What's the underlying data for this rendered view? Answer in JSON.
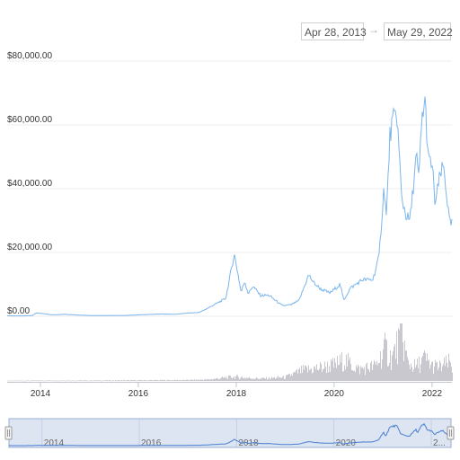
{
  "date_range": {
    "from": "Apr 28, 2013",
    "arrow": "→",
    "to": "May 29, 2022"
  },
  "colors": {
    "price_line": "#7cb5ec",
    "volume_bar": "#c8c8ce",
    "navigator_fill": "#dde5f3",
    "navigator_border": "#9aaed4",
    "grid": "#ececec",
    "axis_text": "#333333"
  },
  "chart_data": {
    "type": "line",
    "title": "",
    "xlabel": "",
    "ylabel": "",
    "ylim": [
      0,
      80000
    ],
    "yticks": [
      "$0.00",
      "$20,000.00",
      "$40,000.00",
      "$60,000.00",
      "$80,000.00"
    ],
    "xticks": [
      "2014",
      "2016",
      "2018",
      "2020",
      "2022"
    ],
    "navigator_xticks": [
      "2014",
      "2016",
      "2018",
      "2020",
      "2..."
    ],
    "grid": true,
    "legend": "none",
    "series": [
      {
        "values_kind": "price",
        "x": [
          "2013-04-28",
          "2013-08-01",
          "2013-11-01",
          "2013-12-04",
          "2014-01-15",
          "2014-04-01",
          "2014-07-01",
          "2014-10-01",
          "2015-01-15",
          "2015-06-01",
          "2015-10-01",
          "2016-01-01",
          "2016-06-15",
          "2016-10-01",
          "2017-01-01",
          "2017-04-01",
          "2017-06-01",
          "2017-08-15",
          "2017-10-15",
          "2017-12-17",
          "2018-01-15",
          "2018-02-06",
          "2018-03-05",
          "2018-04-01",
          "2018-05-05",
          "2018-07-01",
          "2018-09-01",
          "2018-11-25",
          "2018-12-15",
          "2019-02-15",
          "2019-04-15",
          "2019-06-26",
          "2019-08-01",
          "2019-09-24",
          "2019-12-01",
          "2020-02-15",
          "2020-03-13",
          "2020-05-01",
          "2020-08-01",
          "2020-10-15",
          "2020-12-01",
          "2021-01-08",
          "2021-01-25",
          "2021-02-21",
          "2021-03-13",
          "2021-04-14",
          "2021-05-19",
          "2021-06-22",
          "2021-07-20",
          "2021-09-07",
          "2021-09-21",
          "2021-10-20",
          "2021-11-10",
          "2021-12-04",
          "2022-01-01",
          "2022-01-24",
          "2022-03-01",
          "2022-03-28",
          "2022-04-15",
          "2022-05-12",
          "2022-05-29"
        ],
        "y": [
          135,
          100,
          200,
          1100,
          850,
          450,
          620,
          380,
          220,
          230,
          250,
          430,
          700,
          600,
          990,
          1200,
          2500,
          4200,
          5600,
          19500,
          13000,
          7500,
          11000,
          7000,
          9500,
          6500,
          6600,
          3800,
          3300,
          3600,
          5000,
          13000,
          10500,
          8500,
          7300,
          10000,
          5000,
          8800,
          11500,
          11400,
          18500,
          41000,
          31000,
          57000,
          61000,
          63500,
          37000,
          31500,
          30000,
          51000,
          42000,
          63000,
          67500,
          49000,
          47500,
          35000,
          44000,
          47000,
          40000,
          29000,
          29000
        ]
      },
      {
        "values_kind": "volume",
        "x": [
          "2013-04-28",
          "2014-01-01",
          "2015-01-01",
          "2016-01-01",
          "2017-01-01",
          "2017-06-01",
          "2017-12-17",
          "2018-03-01",
          "2018-07-01",
          "2019-01-01",
          "2019-05-01",
          "2019-09-01",
          "2020-01-01",
          "2020-03-13",
          "2020-07-01",
          "2020-11-01",
          "2021-01-15",
          "2021-03-01",
          "2021-05-19",
          "2021-07-01",
          "2021-09-01",
          "2021-11-01",
          "2022-01-01",
          "2022-03-01",
          "2022-05-12",
          "2022-05-29"
        ],
        "y": [
          0.5,
          1,
          1,
          1.5,
          2,
          3,
          9,
          7,
          5,
          8,
          22,
          28,
          34,
          45,
          25,
          32,
          70,
          48,
          100,
          38,
          30,
          48,
          32,
          30,
          40,
          26
        ]
      }
    ]
  }
}
